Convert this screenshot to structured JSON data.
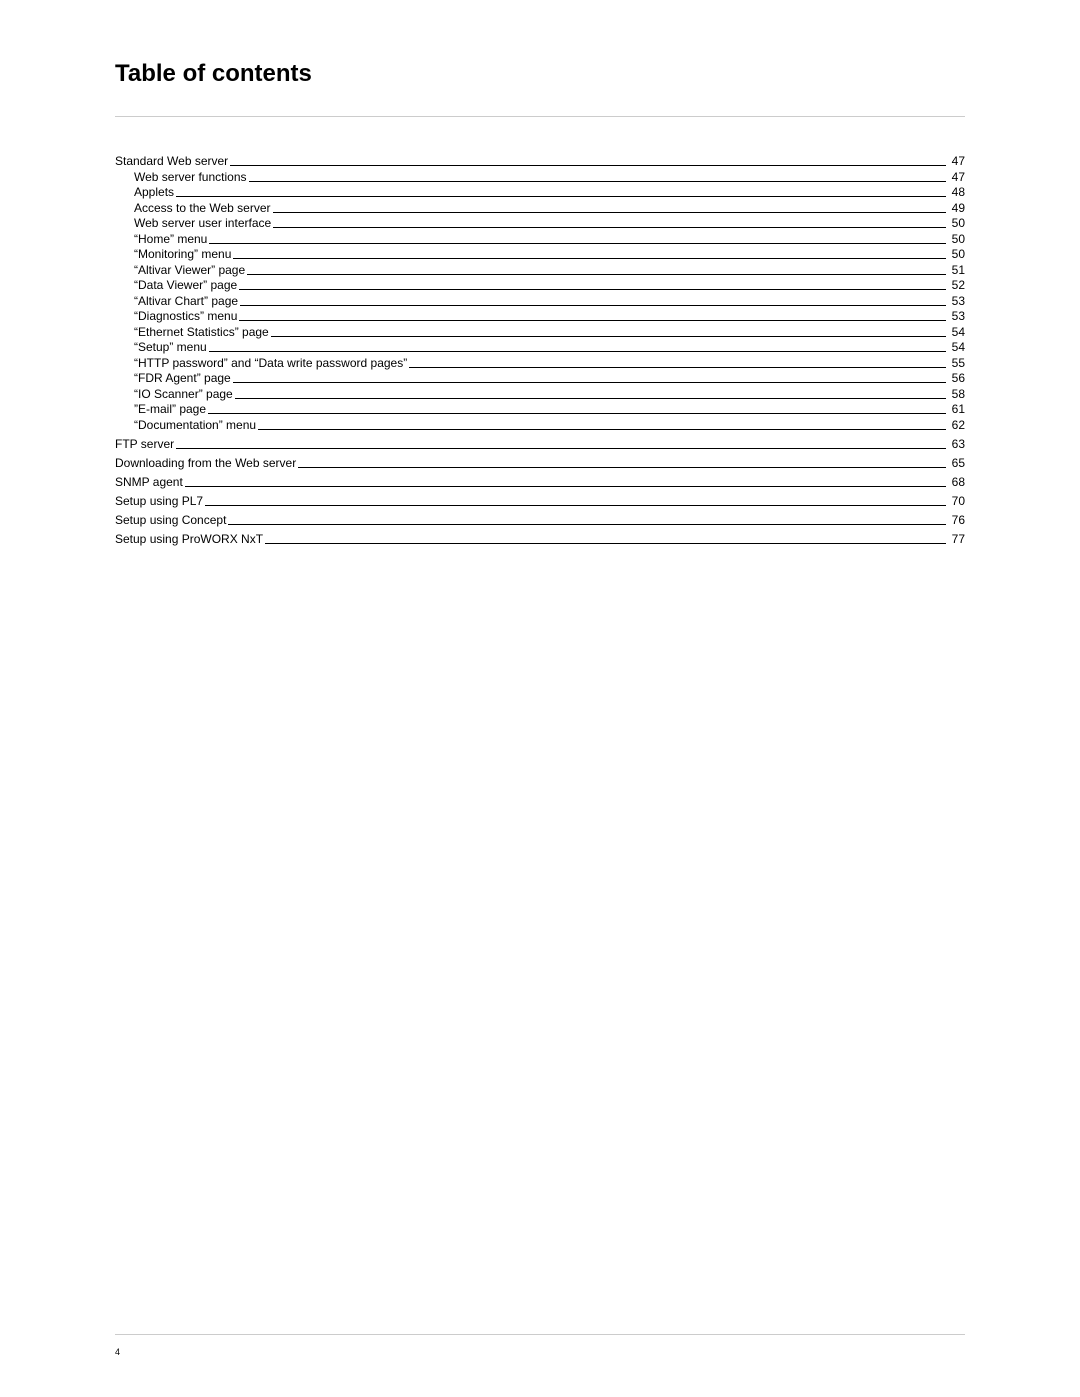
{
  "title": "Table of contents",
  "page_number": "4",
  "entries": [
    {
      "label": "Standard Web server",
      "page": "47",
      "level": 0
    },
    {
      "label": "Web server functions",
      "page": "47",
      "level": 1
    },
    {
      "label": "Applets",
      "page": "48",
      "level": 1
    },
    {
      "label": "Access to the Web server",
      "page": "49",
      "level": 1
    },
    {
      "label": "Web server user interface",
      "page": "50",
      "level": 1
    },
    {
      "label": "“Home” menu",
      "page": "50",
      "level": 1
    },
    {
      "label": "“Monitoring” menu",
      "page": "50",
      "level": 1
    },
    {
      "label": "“Altivar Viewer” page",
      "page": "51",
      "level": 1
    },
    {
      "label": "“Data Viewer” page",
      "page": "52",
      "level": 1
    },
    {
      "label": "“Altivar Chart” page",
      "page": "53",
      "level": 1
    },
    {
      "label": "“Diagnostics” menu",
      "page": "53",
      "level": 1
    },
    {
      "label": "“Ethernet Statistics” page",
      "page": "54",
      "level": 1
    },
    {
      "label": "“Setup” menu",
      "page": "54",
      "level": 1
    },
    {
      "label": "“HTTP password” and “Data write password pages”",
      "page": "55",
      "level": 1
    },
    {
      "label": "“FDR Agent” page",
      "page": "56",
      "level": 1
    },
    {
      "label": "“IO Scanner” page",
      "page": "58",
      "level": 1
    },
    {
      "label": "”E-mail” page",
      "page": "61",
      "level": 1
    },
    {
      "label": "“Documentation” menu",
      "page": "62",
      "level": 1
    },
    {
      "label": "FTP server",
      "page": "63",
      "level": 0
    },
    {
      "label": "Downloading from the Web server",
      "page": "65",
      "level": 0
    },
    {
      "label": "SNMP agent",
      "page": "68",
      "level": 0
    },
    {
      "label": "Setup using PL7",
      "page": "70",
      "level": 0
    },
    {
      "label": "Setup using Concept",
      "page": "76",
      "level": 0
    },
    {
      "label": "Setup using ProWORX NxT",
      "page": "77",
      "level": 0
    }
  ]
}
